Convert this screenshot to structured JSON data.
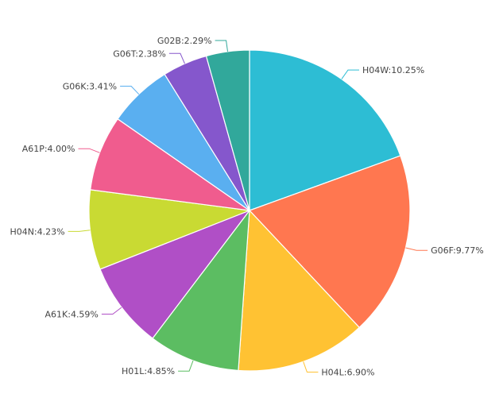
{
  "chart_data": {
    "type": "pie",
    "slices": [
      {
        "label": "H04W",
        "value": 10.25,
        "label_text": "H04W:10.25%",
        "color": "#2dbdd4"
      },
      {
        "label": "G06F",
        "value": 9.77,
        "label_text": "G06F:9.77%",
        "color": "#ff7750"
      },
      {
        "label": "H04L",
        "value": 6.9,
        "label_text": "H04L:6.90%",
        "color": "#ffc233"
      },
      {
        "label": "H01L",
        "value": 4.85,
        "label_text": "H01L:4.85%",
        "color": "#5cbd62"
      },
      {
        "label": "A61K",
        "value": 4.59,
        "label_text": "A61K:4.59%",
        "color": "#b04fc6"
      },
      {
        "label": "H04N",
        "value": 4.23,
        "label_text": "H04N:4.23%",
        "color": "#c9da33"
      },
      {
        "label": "A61P",
        "value": 4.0,
        "label_text": "A61P:4.00%",
        "color": "#f05c8e"
      },
      {
        "label": "G06K",
        "value": 3.41,
        "label_text": "G06K:3.41%",
        "color": "#5aaff0"
      },
      {
        "label": "G06T",
        "value": 2.38,
        "label_text": "G06T:2.38%",
        "color": "#8557cc"
      },
      {
        "label": "G02B",
        "value": 2.29,
        "label_text": "G02B:2.29%",
        "color": "#31a89b"
      }
    ],
    "start": "12 o'clock",
    "direction": "clockwise"
  }
}
